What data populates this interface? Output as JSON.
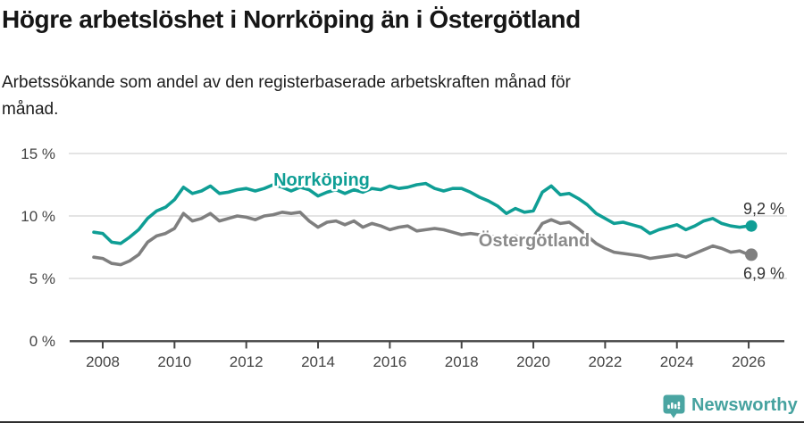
{
  "header": {
    "title": "Högre arbetslöshet i Norrköping än i Östergötland",
    "subtitle": "Arbetssökande som andel av den registerbaserade arbetskraften månad för\nmånad."
  },
  "footer": {
    "brand": "Newsworthy",
    "brand_color": "#45a29f"
  },
  "colors": {
    "norrkoping_teal": "#0f9e95",
    "ostergotland_gray": "#7f7f7f",
    "ostergotland_label_gray": "#8a8a8a",
    "axis": "#454545",
    "grid": "#dcdcdc",
    "value_label": "#333333"
  },
  "chart_data": {
    "type": "line",
    "x_unit": "decimal_year",
    "x_start": 2007.75,
    "x_step": 0.25,
    "ylim": [
      0,
      15
    ],
    "grid": "horizontal",
    "legend": "inline-labels",
    "yticks": [
      {
        "value": 0,
        "label": "0 %"
      },
      {
        "value": 5,
        "label": "5 %"
      },
      {
        "value": 10,
        "label": "10 %"
      },
      {
        "value": 15,
        "label": "15 %"
      }
    ],
    "xticks": [
      {
        "year": 2008,
        "label": "2008"
      },
      {
        "year": 2010,
        "label": "2010"
      },
      {
        "year": 2012,
        "label": "2012"
      },
      {
        "year": 2014,
        "label": "2014"
      },
      {
        "year": 2016,
        "label": "2016"
      },
      {
        "year": 2018,
        "label": "2018"
      },
      {
        "year": 2020,
        "label": "2020"
      },
      {
        "year": 2022,
        "label": "2022"
      },
      {
        "year": 2024,
        "label": "2024"
      },
      {
        "year": 2026,
        "label": "2026"
      }
    ],
    "series": [
      {
        "name": "Norrköping",
        "color": "#0f9e95",
        "label_color": "#0f9e95",
        "end_value": 9.2,
        "end_label": "9,2 %",
        "values": [
          8.7,
          8.6,
          7.9,
          7.8,
          8.3,
          8.9,
          9.8,
          10.4,
          10.7,
          11.3,
          12.3,
          11.8,
          12.0,
          12.4,
          11.8,
          11.9,
          12.1,
          12.2,
          12.0,
          12.2,
          12.5,
          12.3,
          12.0,
          12.3,
          12.1,
          11.6,
          11.9,
          12.1,
          11.8,
          12.1,
          11.9,
          12.2,
          12.1,
          12.4,
          12.2,
          12.3,
          12.5,
          12.6,
          12.2,
          12.0,
          12.2,
          12.2,
          11.9,
          11.5,
          11.2,
          10.8,
          10.2,
          10.6,
          10.3,
          10.4,
          11.9,
          12.4,
          11.7,
          11.8,
          11.4,
          10.9,
          10.2,
          9.8,
          9.4,
          9.5,
          9.3,
          9.1,
          8.6,
          8.9,
          9.1,
          9.3,
          8.9,
          9.2,
          9.6,
          9.8,
          9.4,
          9.2,
          9.1,
          9.2
        ]
      },
      {
        "name": "Östergötland",
        "color": "#7f7f7f",
        "label_color": "#8a8a8a",
        "end_value": 6.9,
        "end_label": "6,9 %",
        "values": [
          6.7,
          6.6,
          6.2,
          6.1,
          6.4,
          6.9,
          7.9,
          8.4,
          8.6,
          9.0,
          10.2,
          9.6,
          9.8,
          10.2,
          9.6,
          9.8,
          10.0,
          9.9,
          9.7,
          10.0,
          10.1,
          10.3,
          10.2,
          10.3,
          9.6,
          9.1,
          9.5,
          9.6,
          9.3,
          9.6,
          9.1,
          9.4,
          9.2,
          8.9,
          9.1,
          9.2,
          8.8,
          8.9,
          9.0,
          8.9,
          8.7,
          8.5,
          8.6,
          8.5,
          8.4,
          8.3,
          8.2,
          8.4,
          8.2,
          8.3,
          9.4,
          9.7,
          9.4,
          9.5,
          9.0,
          8.4,
          7.8,
          7.4,
          7.1,
          7.0,
          6.9,
          6.8,
          6.6,
          6.7,
          6.8,
          6.9,
          6.7,
          7.0,
          7.3,
          7.6,
          7.4,
          7.1,
          7.2,
          6.9
        ]
      }
    ]
  }
}
